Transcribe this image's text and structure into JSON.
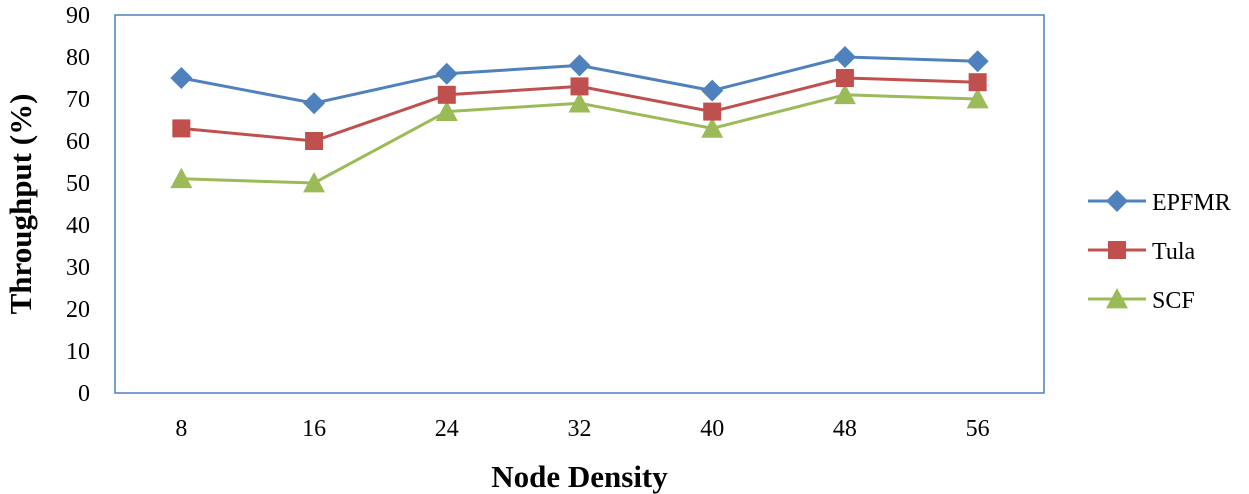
{
  "chart_data": {
    "type": "line",
    "title": "",
    "xlabel": "Node Density",
    "ylabel": "Throughput (%)",
    "categories": [
      "8",
      "16",
      "24",
      "32",
      "40",
      "48",
      "56"
    ],
    "ylim": [
      0,
      90
    ],
    "yticks": [
      0,
      10,
      20,
      30,
      40,
      50,
      60,
      70,
      80,
      90
    ],
    "grid": false,
    "legend_position": "right",
    "series": [
      {
        "name": "EPFMR",
        "values": [
          75,
          69,
          76,
          78,
          72,
          80,
          79
        ],
        "color": "#4F81BD",
        "marker": "diamond"
      },
      {
        "name": "Tula",
        "values": [
          63,
          60,
          71,
          73,
          67,
          75,
          74
        ],
        "color": "#C0504D",
        "marker": "square"
      },
      {
        "name": "SCF",
        "values": [
          51,
          50,
          67,
          69,
          63,
          71,
          70
        ],
        "color": "#9BBB59",
        "marker": "triangle"
      }
    ],
    "plot_border_color": "#4F81BD"
  }
}
